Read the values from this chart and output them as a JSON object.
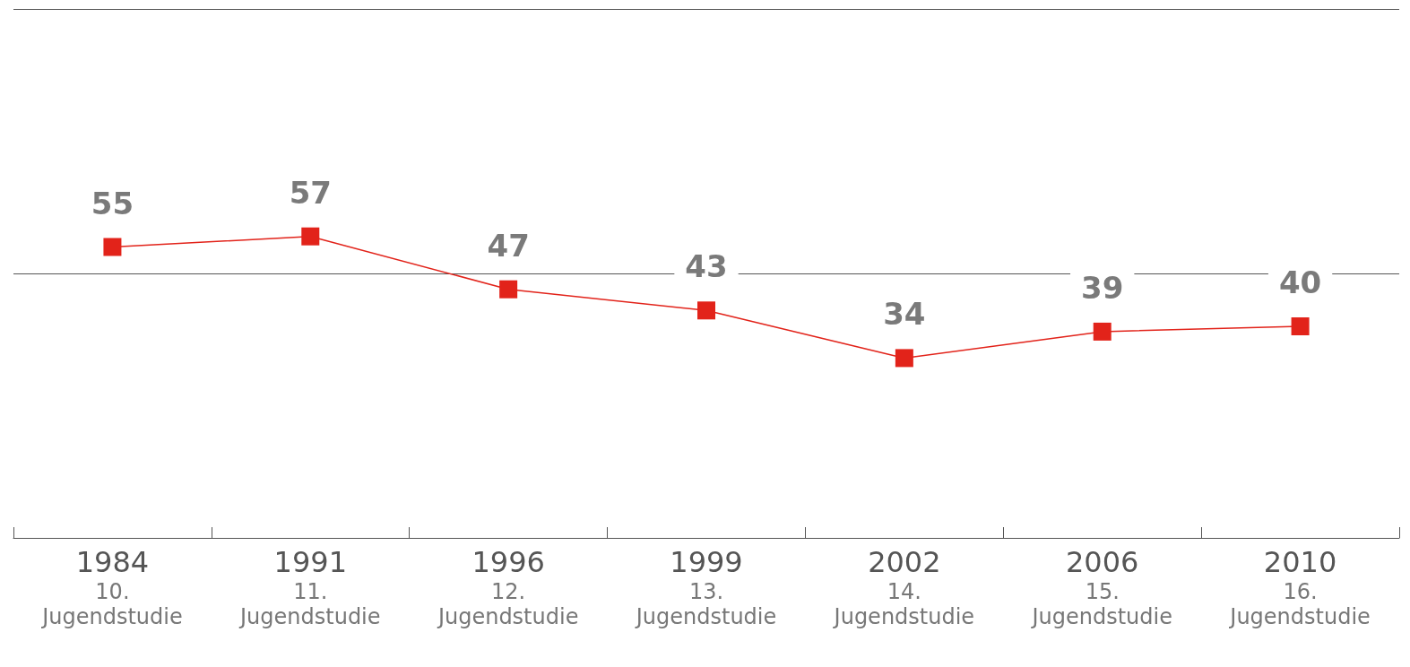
{
  "chart_data": {
    "type": "line",
    "categories": [
      "1984\n10.\nJugendstudie",
      "1991\n11.\nJugendstudie",
      "1996\n12.\nJugendstudie",
      "1999\n13.\nJugendstudie",
      "2002\n14.\nJugendstudie",
      "2006\n15.\nJugendstudie",
      "2010\n16.\nJugendstudie"
    ],
    "series": [
      {
        "color": "#e2231a",
        "values": [
          55,
          57,
          47,
          43,
          34,
          39,
          40
        ]
      }
    ],
    "ylim": [
      0,
      100
    ],
    "ref_lines": [
      {
        "axis": "y",
        "value": 50,
        "color": "#555555"
      },
      {
        "axis": "y",
        "value": 100,
        "color": "#555555"
      }
    ],
    "tick_labels": "x",
    "data_labels": true,
    "marker": "square",
    "line_style": "solid"
  }
}
